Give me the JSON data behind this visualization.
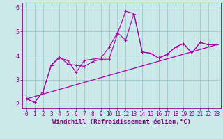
{
  "xlabel": "Windchill (Refroidissement éolien,°C)",
  "xlim": [
    -0.5,
    23.5
  ],
  "ylim": [
    1.8,
    6.2
  ],
  "yticks": [
    2,
    3,
    4,
    5,
    6
  ],
  "xticks": [
    0,
    1,
    2,
    3,
    4,
    5,
    6,
    7,
    8,
    9,
    10,
    11,
    12,
    13,
    14,
    15,
    16,
    17,
    18,
    19,
    20,
    21,
    22,
    23
  ],
  "bg_color": "#cce8e8",
  "line_color": "#aa00aa",
  "grid_color": "#99cccc",
  "line1_y": [
    2.2,
    2.05,
    2.5,
    3.6,
    3.9,
    3.8,
    3.3,
    3.8,
    3.85,
    3.9,
    4.35,
    4.95,
    4.65,
    5.75,
    4.15,
    4.1,
    3.9,
    4.05,
    4.35,
    4.5,
    4.1,
    4.55,
    4.45,
    4.45
  ],
  "line2_y": [
    2.2,
    2.05,
    2.5,
    3.6,
    3.95,
    3.65,
    3.6,
    3.55,
    3.75,
    3.85,
    3.85,
    4.9,
    5.85,
    5.75,
    4.15,
    4.1,
    3.9,
    4.05,
    4.35,
    4.5,
    4.1,
    4.55,
    4.45,
    4.45
  ],
  "line3_x": [
    0,
    23
  ],
  "line3_y": [
    2.2,
    4.45
  ],
  "figsize": [
    3.2,
    2.0
  ],
  "dpi": 100,
  "font_color": "#880088",
  "tick_fontsize": 5.5,
  "xlabel_fontsize": 6.5
}
